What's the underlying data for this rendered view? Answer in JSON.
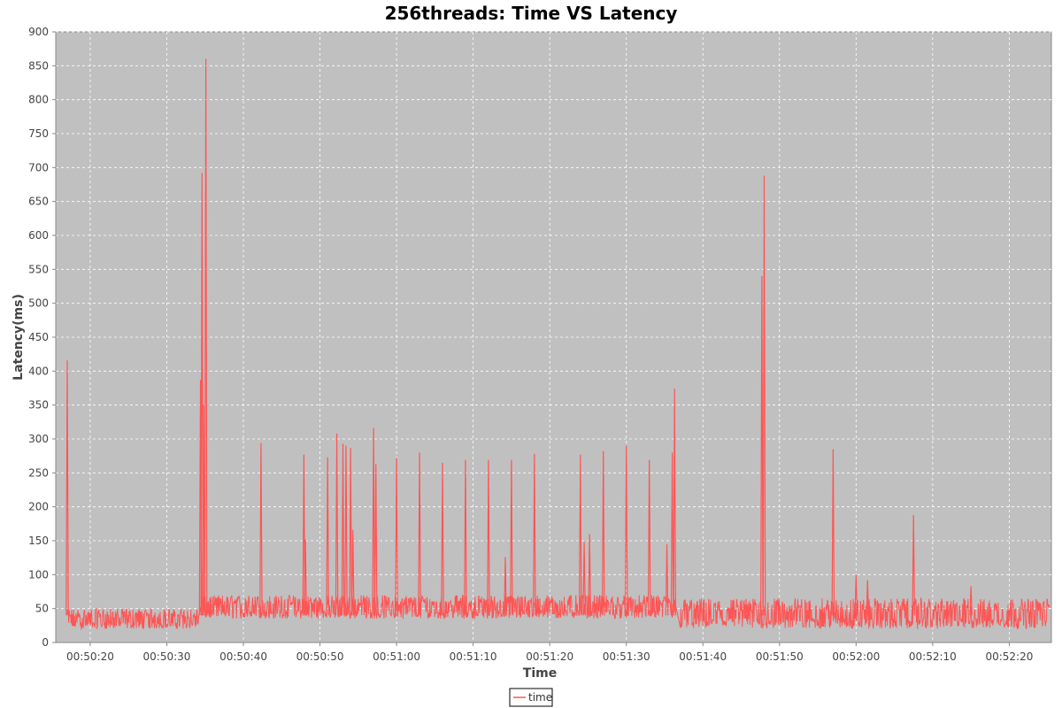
{
  "chart_data": {
    "type": "line",
    "title": "256threads: Time VS Latency",
    "xlabel": "Time",
    "ylabel": "Latency(ms)",
    "ylim": [
      0,
      900
    ],
    "y_ticks": [
      0,
      50,
      100,
      150,
      200,
      250,
      300,
      350,
      400,
      450,
      500,
      550,
      600,
      650,
      700,
      750,
      800,
      850,
      900
    ],
    "x_tick_labels": [
      "00:50:20",
      "00:50:30",
      "00:50:40",
      "00:50:50",
      "00:51:00",
      "00:51:10",
      "00:51:20",
      "00:51:30",
      "00:51:40",
      "00:51:50",
      "00:52:00",
      "00:52:10",
      "00:52:20"
    ],
    "x_range_seconds": {
      "start": "00:50:15.5",
      "end": "00:52:25.5"
    },
    "grid": true,
    "background_color": "#c0c0c0",
    "legend_position": "bottom-center",
    "series": [
      {
        "name": "time",
        "color": "#ff5555",
        "baseline_segments": [
          {
            "from": "00:50:17.0",
            "to": "00:50:34.2",
            "low": 20,
            "high": 50
          },
          {
            "from": "00:50:34.6",
            "to": "00:51:36.5",
            "low": 35,
            "high": 70
          },
          {
            "from": "00:51:37.0",
            "to": "00:52:25.3",
            "low": 20,
            "high": 65
          }
        ],
        "spikes": [
          {
            "t": "00:50:17.0",
            "v": 416
          },
          {
            "t": "00:50:34.4",
            "v": 387
          },
          {
            "t": "00:50:34.6",
            "v": 692
          },
          {
            "t": "00:50:34.8",
            "v": 350
          },
          {
            "t": "00:50:35.1",
            "v": 860
          },
          {
            "t": "00:50:42.3",
            "v": 294
          },
          {
            "t": "00:50:47.9",
            "v": 277
          },
          {
            "t": "00:50:48.1",
            "v": 152
          },
          {
            "t": "00:50:51.0",
            "v": 273
          },
          {
            "t": "00:50:52.2",
            "v": 308
          },
          {
            "t": "00:50:53.0",
            "v": 293
          },
          {
            "t": "00:50:53.4",
            "v": 290
          },
          {
            "t": "00:50:54.0",
            "v": 287
          },
          {
            "t": "00:50:54.3",
            "v": 166
          },
          {
            "t": "00:50:57.0",
            "v": 316
          },
          {
            "t": "00:50:57.3",
            "v": 263
          },
          {
            "t": "00:51:00.0",
            "v": 272
          },
          {
            "t": "00:51:03.0",
            "v": 280
          },
          {
            "t": "00:51:06.0",
            "v": 265
          },
          {
            "t": "00:51:09.0",
            "v": 269
          },
          {
            "t": "00:51:12.0",
            "v": 269
          },
          {
            "t": "00:51:14.2",
            "v": 126
          },
          {
            "t": "00:51:15.0",
            "v": 269
          },
          {
            "t": "00:51:18.0",
            "v": 278
          },
          {
            "t": "00:51:24.0",
            "v": 277
          },
          {
            "t": "00:51:24.5",
            "v": 148
          },
          {
            "t": "00:51:25.2",
            "v": 160
          },
          {
            "t": "00:51:27.0",
            "v": 282
          },
          {
            "t": "00:51:30.0",
            "v": 290
          },
          {
            "t": "00:51:33.0",
            "v": 269
          },
          {
            "t": "00:51:35.3",
            "v": 145
          },
          {
            "t": "00:51:36.0",
            "v": 280
          },
          {
            "t": "00:51:36.3",
            "v": 374
          },
          {
            "t": "00:51:47.7",
            "v": 540
          },
          {
            "t": "00:51:48.0",
            "v": 688
          },
          {
            "t": "00:51:57.0",
            "v": 285
          },
          {
            "t": "00:52:00.0",
            "v": 100
          },
          {
            "t": "00:52:01.5",
            "v": 92
          },
          {
            "t": "00:52:07.5",
            "v": 188
          },
          {
            "t": "00:52:15.0",
            "v": 83
          }
        ]
      }
    ]
  }
}
